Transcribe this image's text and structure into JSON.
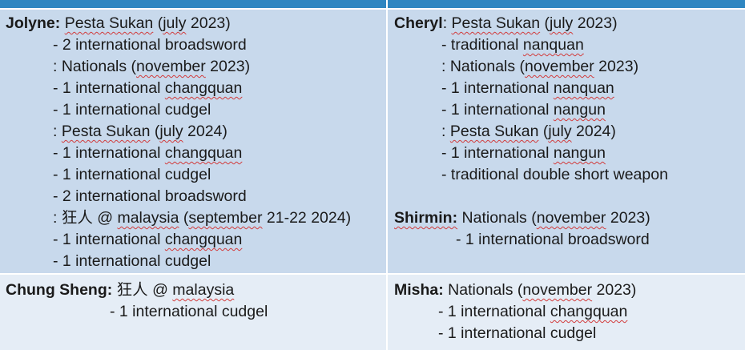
{
  "jolyne": {
    "name": "Jolyne:",
    "lines": [
      {
        "pre": "",
        "sq": "Pesta Sukan",
        "mid": " (",
        "sq2": "july",
        "post": " 2023)"
      },
      {
        "pre": "- 2 international broadsword",
        "sq": "",
        "mid": "",
        "sq2": "",
        "post": ""
      },
      {
        "pre": ": Nationals (",
        "sq": "november",
        "mid": " 2023)",
        "sq2": "",
        "post": ""
      },
      {
        "pre": "- 1 international ",
        "sq": "changquan",
        "mid": "",
        "sq2": "",
        "post": ""
      },
      {
        "pre": "- 1 international cudgel",
        "sq": "",
        "mid": "",
        "sq2": "",
        "post": ""
      },
      {
        "pre": ": ",
        "sq": "Pesta Sukan",
        "mid": " (",
        "sq2": "july",
        "post": " 2024)"
      },
      {
        "pre": "- 1 international ",
        "sq": "changquan",
        "mid": "",
        "sq2": "",
        "post": ""
      },
      {
        "pre": "- 1 international cudgel",
        "sq": "",
        "mid": "",
        "sq2": "",
        "post": ""
      },
      {
        "pre": "- 2 international broadsword",
        "sq": "",
        "mid": "",
        "sq2": "",
        "post": ""
      },
      {
        "pre": ": 狂人 @ ",
        "sq": "malaysia",
        "mid": " (",
        "sq2": "september",
        "post": " 21-22 2024)"
      },
      {
        "pre": "- 1 international ",
        "sq": "changquan",
        "mid": "",
        "sq2": "",
        "post": ""
      },
      {
        "pre": "- 1 international cudgel",
        "sq": "",
        "mid": "",
        "sq2": "",
        "post": ""
      }
    ]
  },
  "cheryl": {
    "name": "Cheryl",
    "lines": [
      {
        "pre": ": ",
        "sq": "Pesta Sukan",
        "mid": " (",
        "sq2": "july",
        "post": " 2023)"
      },
      {
        "pre": "- traditional ",
        "sq": "nanquan",
        "mid": "",
        "sq2": "",
        "post": ""
      },
      {
        "pre": ": Nationals (",
        "sq": "november",
        "mid": " 2023)",
        "sq2": "",
        "post": ""
      },
      {
        "pre": "- 1 international ",
        "sq": "nanquan",
        "mid": "",
        "sq2": "",
        "post": ""
      },
      {
        "pre": "- 1 international ",
        "sq": "nangun",
        "mid": "",
        "sq2": "",
        "post": ""
      },
      {
        "pre": ": ",
        "sq": "Pesta Sukan",
        "mid": " (",
        "sq2": "july",
        "post": " 2024)"
      },
      {
        "pre": "- 1 international ",
        "sq": "nangun",
        "mid": "",
        "sq2": "",
        "post": ""
      },
      {
        "pre": "- traditional double short weapon",
        "sq": "",
        "mid": "",
        "sq2": "",
        "post": ""
      }
    ]
  },
  "shirmin": {
    "name": "Shirmin:",
    "lines": [
      {
        "pre": " Nationals (",
        "sq": "november",
        "mid": " 2023)",
        "sq2": "",
        "post": ""
      },
      {
        "pre": "- 1 international broadsword",
        "sq": "",
        "mid": "",
        "sq2": "",
        "post": ""
      }
    ]
  },
  "chungsheng": {
    "name": "Chung Sheng:",
    "lines": [
      {
        "pre": " 狂人 @ ",
        "sq": "malaysia",
        "mid": "",
        "sq2": "",
        "post": ""
      },
      {
        "pre": "- 1 international cudgel",
        "sq": "",
        "mid": "",
        "sq2": "",
        "post": ""
      }
    ]
  },
  "misha": {
    "name": "Misha:",
    "lines": [
      {
        "pre": " Nationals (",
        "sq": "november",
        "mid": " 2023)",
        "sq2": "",
        "post": ""
      },
      {
        "pre": "- 1 international ",
        "sq": "changquan",
        "mid": "",
        "sq2": "",
        "post": ""
      },
      {
        "pre": "- 1 international cudgel",
        "sq": "",
        "mid": "",
        "sq2": "",
        "post": ""
      }
    ]
  }
}
